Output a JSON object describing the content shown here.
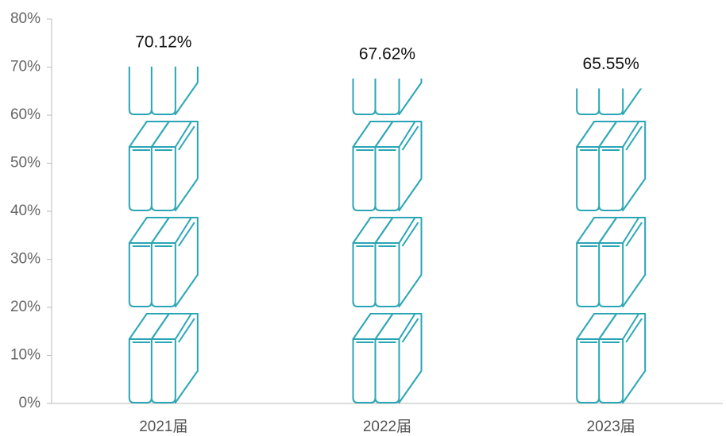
{
  "chart_data": {
    "type": "bar",
    "categories": [
      "2021届",
      "2022届",
      "2023届"
    ],
    "values": [
      70.12,
      67.62,
      65.55
    ],
    "value_labels": [
      "70.12%",
      "67.62%",
      "65.55%"
    ],
    "color": "#2aa5b5",
    "ylim": [
      0,
      80
    ],
    "yticks": [
      {
        "value": 0,
        "label": "0%"
      },
      {
        "value": 10,
        "label": "10%"
      },
      {
        "value": 20,
        "label": "20%"
      },
      {
        "value": 30,
        "label": "30%"
      },
      {
        "value": 40,
        "label": "40%"
      },
      {
        "value": 50,
        "label": "50%"
      },
      {
        "value": 60,
        "label": "60%"
      },
      {
        "value": 70,
        "label": "70%"
      },
      {
        "value": 80,
        "label": "80%"
      }
    ],
    "grid": false
  }
}
